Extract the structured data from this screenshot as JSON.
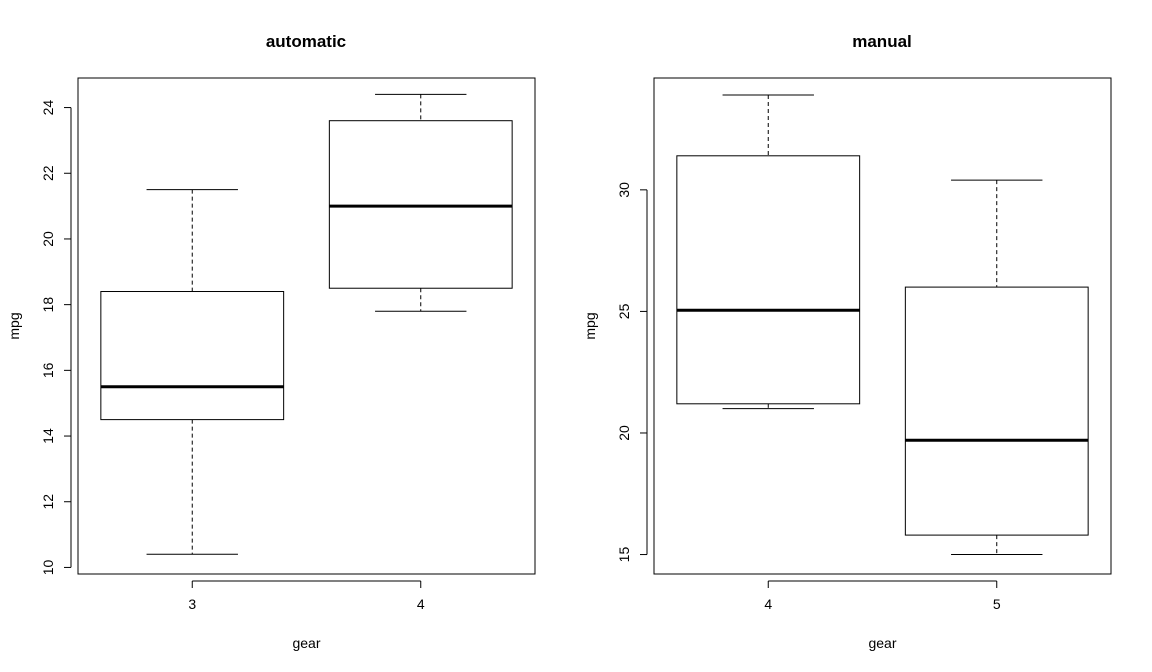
{
  "chart_data": [
    {
      "type": "boxplot",
      "title": "automatic",
      "xlabel": "gear",
      "ylabel": "mpg",
      "ylim": [
        9.8,
        24.9
      ],
      "yticks": [
        10,
        12,
        14,
        16,
        18,
        20,
        22,
        24
      ],
      "categories": [
        "3",
        "4"
      ],
      "boxes": [
        {
          "category": "3",
          "min": 10.4,
          "q1": 14.5,
          "median": 15.5,
          "q3": 18.4,
          "max": 21.5
        },
        {
          "category": "4",
          "min": 17.8,
          "q1": 18.5,
          "median": 21.0,
          "q3": 23.6,
          "max": 24.4
        }
      ]
    },
    {
      "type": "boxplot",
      "title": "manual",
      "xlabel": "gear",
      "ylabel": "mpg",
      "ylim": [
        14.2,
        34.6
      ],
      "yticks": [
        15,
        20,
        25,
        30
      ],
      "categories": [
        "4",
        "5"
      ],
      "boxes": [
        {
          "category": "4",
          "min": 21.0,
          "q1": 21.2,
          "median": 25.05,
          "q3": 31.4,
          "max": 33.9
        },
        {
          "category": "5",
          "min": 15.0,
          "q1": 15.8,
          "median": 19.7,
          "q3": 26.0,
          "max": 30.4
        }
      ]
    }
  ]
}
